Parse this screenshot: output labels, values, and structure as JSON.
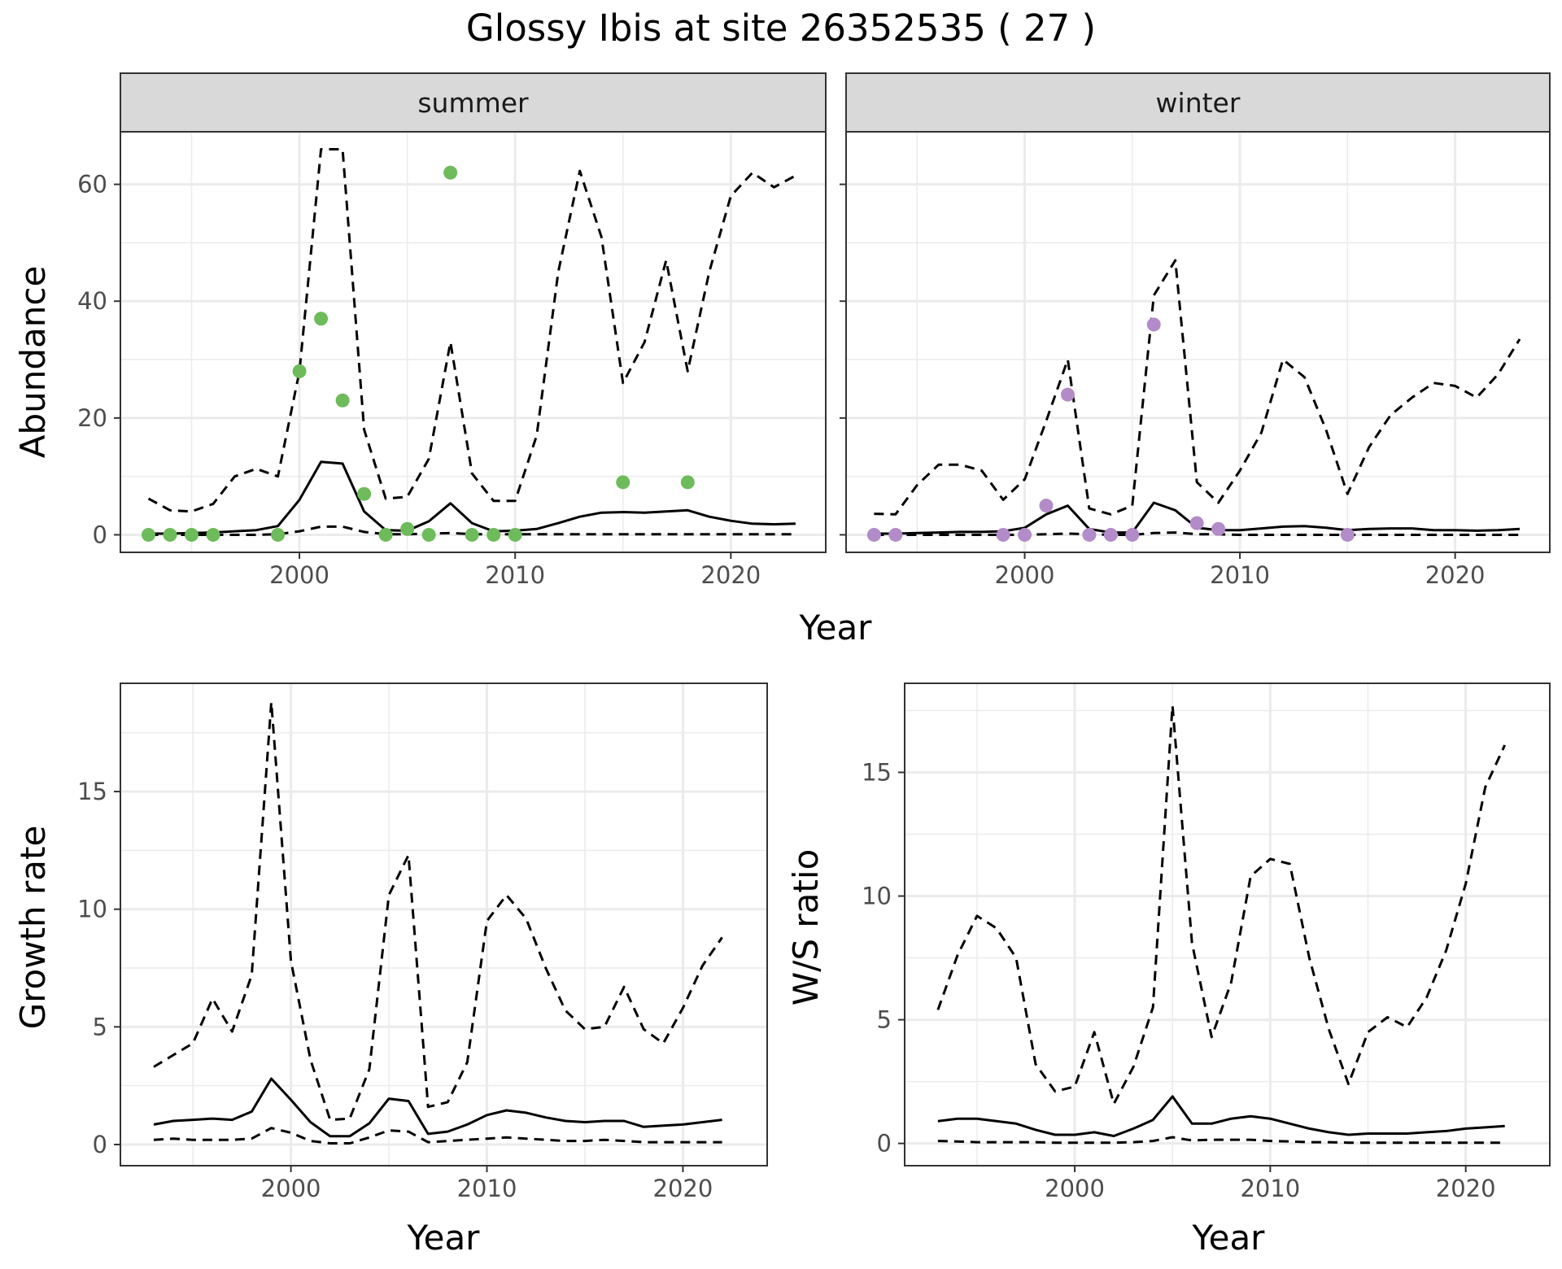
{
  "title": "Glossy Ibis at site 26352535 ( 27 )",
  "colors": {
    "summer_points": "#6dbb5a",
    "winter_points": "#b38bc8",
    "lines": "#000000",
    "strip_fill": "#d9d9d9",
    "grid": "#ebebeb",
    "panel_border": "#333333"
  },
  "legend": "none",
  "chart_data": [
    {
      "id": "abundance-summer",
      "type": "line",
      "strip": "summer",
      "xlabel": "",
      "ylabel": "Abundance",
      "xlim": [
        1991.7,
        2024.4
      ],
      "ylim": [
        -3,
        69
      ],
      "xticks": [
        2000,
        2010,
        2020
      ],
      "yticks": [
        0,
        20,
        40,
        60
      ],
      "grid": true,
      "x": [
        1993,
        1994,
        1995,
        1996,
        1997,
        1998,
        1999,
        2000,
        2001,
        2002,
        2003,
        2004,
        2005,
        2006,
        2007,
        2008,
        2009,
        2010,
        2011,
        2012,
        2013,
        2014,
        2015,
        2016,
        2017,
        2018,
        2019,
        2020,
        2021,
        2022,
        2023
      ],
      "series": [
        {
          "role": "lower",
          "style": "dashed",
          "values": [
            0,
            0,
            0,
            0,
            0,
            0,
            0.1,
            0.6,
            1.4,
            1.4,
            0.5,
            0.1,
            0.1,
            0.2,
            0.3,
            0.1,
            0.1,
            0.1,
            0.1,
            0.1,
            0.1,
            0.1,
            0.1,
            0.1,
            0.1,
            0.1,
            0.1,
            0.1,
            0.1,
            0.1,
            0.1
          ]
        },
        {
          "role": "mean",
          "style": "solid",
          "values": [
            0.2,
            0.2,
            0.3,
            0.4,
            0.6,
            0.8,
            1.5,
            6,
            12.5,
            12.2,
            4,
            0.8,
            0.7,
            2.3,
            5.4,
            2,
            0.6,
            0.7,
            1,
            2,
            3.1,
            3.8,
            3.9,
            3.8,
            4,
            4.2,
            3.1,
            2.4,
            1.9,
            1.8,
            1.9
          ]
        },
        {
          "role": "upper",
          "style": "dashed",
          "values": [
            6.2,
            4.2,
            4,
            5.3,
            10,
            11.3,
            10,
            28,
            66,
            66,
            18,
            6.2,
            6.5,
            13,
            33,
            10.5,
            5.8,
            5.8,
            17,
            45,
            62.3,
            51,
            26,
            33,
            47,
            28,
            45,
            58,
            62,
            59.5,
            61.5
          ]
        }
      ],
      "points": {
        "x": [
          1993,
          1994,
          1995,
          1996,
          1999,
          2000,
          2001,
          2002,
          2003,
          2004,
          2005,
          2006,
          2007,
          2008,
          2009,
          2010,
          2015,
          2018
        ],
        "y": [
          0,
          0,
          0,
          0,
          0,
          28,
          37,
          23,
          7,
          0,
          1,
          0,
          62,
          0,
          0,
          0,
          9,
          9
        ]
      }
    },
    {
      "id": "abundance-winter",
      "type": "line",
      "strip": "winter",
      "xlabel": "",
      "ylabel": "",
      "xlim": [
        1991.7,
        2024.4
      ],
      "ylim": [
        -3,
        69
      ],
      "xticks": [
        2000,
        2010,
        2020
      ],
      "yticks": [
        0,
        20,
        40,
        60
      ],
      "grid": true,
      "x": [
        1993,
        1994,
        1995,
        1996,
        1997,
        1998,
        1999,
        2000,
        2001,
        2002,
        2003,
        2004,
        2005,
        2006,
        2007,
        2008,
        2009,
        2010,
        2011,
        2012,
        2013,
        2014,
        2015,
        2016,
        2017,
        2018,
        2019,
        2020,
        2021,
        2022,
        2023
      ],
      "series": [
        {
          "role": "lower",
          "style": "dashed",
          "values": [
            0,
            0,
            0,
            0,
            0,
            0,
            0,
            0,
            0.1,
            0.2,
            0.1,
            0,
            0,
            0.3,
            0.4,
            0.1,
            0.1,
            0,
            0,
            0,
            0,
            0,
            0,
            0,
            0,
            0,
            0,
            0,
            0,
            0,
            0
          ]
        },
        {
          "role": "mean",
          "style": "solid",
          "values": [
            0.2,
            0.2,
            0.3,
            0.4,
            0.5,
            0.5,
            0.6,
            1.2,
            3.5,
            5,
            1,
            0.4,
            0.4,
            5.5,
            4.2,
            1.2,
            0.8,
            0.8,
            1.1,
            1.4,
            1.5,
            1.2,
            0.8,
            1,
            1.1,
            1.1,
            0.8,
            0.8,
            0.7,
            0.8,
            1
          ]
        },
        {
          "role": "upper",
          "style": "dashed",
          "values": [
            3.6,
            3.5,
            8.5,
            12,
            12,
            11,
            6,
            9.5,
            19.5,
            30,
            4.5,
            3.5,
            5,
            41,
            47,
            9,
            5.5,
            11,
            17.5,
            30,
            27,
            18,
            7,
            15,
            20.5,
            23.5,
            26,
            25.5,
            23.5,
            27.5,
            33.5
          ]
        }
      ],
      "points": {
        "x": [
          1993,
          1994,
          1999,
          2000,
          2001,
          2002,
          2003,
          2004,
          2005,
          2006,
          2008,
          2009,
          2015
        ],
        "y": [
          0,
          0,
          0,
          0,
          5,
          24,
          0,
          0,
          0,
          36,
          2,
          1,
          0
        ]
      }
    },
    {
      "id": "growth-rate",
      "type": "line",
      "xlabel": "Year",
      "ylabel": "Growth rate",
      "xlim": [
        1991.3,
        2024.3
      ],
      "ylim": [
        -0.9,
        19.6
      ],
      "xticks": [
        2000,
        2010,
        2020
      ],
      "yticks": [
        0,
        5,
        10,
        15
      ],
      "grid": true,
      "x": [
        1993,
        1994,
        1995,
        1996,
        1997,
        1998,
        1999,
        2000,
        2001,
        2002,
        2003,
        2004,
        2005,
        2006,
        2007,
        2008,
        2009,
        2010,
        2011,
        2012,
        2013,
        2014,
        2015,
        2016,
        2017,
        2018,
        2019,
        2020,
        2021,
        2022
      ],
      "series": [
        {
          "role": "lower",
          "style": "dashed",
          "values": [
            0.2,
            0.25,
            0.2,
            0.2,
            0.2,
            0.25,
            0.7,
            0.5,
            0.15,
            0.05,
            0.05,
            0.3,
            0.6,
            0.55,
            0.1,
            0.15,
            0.2,
            0.25,
            0.3,
            0.25,
            0.2,
            0.15,
            0.15,
            0.2,
            0.15,
            0.1,
            0.1,
            0.1,
            0.1,
            0.1
          ]
        },
        {
          "role": "mean",
          "style": "solid",
          "values": [
            0.85,
            1,
            1.05,
            1.1,
            1.05,
            1.4,
            2.8,
            1.9,
            0.95,
            0.35,
            0.35,
            0.9,
            1.95,
            1.85,
            0.45,
            0.55,
            0.85,
            1.25,
            1.45,
            1.35,
            1.15,
            1,
            0.95,
            1,
            1,
            0.75,
            0.8,
            0.85,
            0.95,
            1.05
          ]
        },
        {
          "role": "upper",
          "style": "dashed",
          "values": [
            3.3,
            3.8,
            4.3,
            6.2,
            4.8,
            7.2,
            18.8,
            7.8,
            3.6,
            1.05,
            1.1,
            3.2,
            10.6,
            12.3,
            1.6,
            1.8,
            3.5,
            9.5,
            10.6,
            9.6,
            7.5,
            5.7,
            4.9,
            5,
            6.7,
            4.9,
            4.3,
            5.8,
            7.6,
            8.8
          ]
        }
      ]
    },
    {
      "id": "ws-ratio",
      "type": "line",
      "xlabel": "Year",
      "ylabel": "W/S ratio",
      "xlim": [
        1991.3,
        2024.3
      ],
      "ylim": [
        -0.9,
        18.6
      ],
      "xticks": [
        2000,
        2010,
        2020
      ],
      "yticks": [
        0,
        5,
        10,
        15
      ],
      "grid": true,
      "x": [
        1993,
        1994,
        1995,
        1996,
        1997,
        1998,
        1999,
        2000,
        2001,
        2002,
        2003,
        2004,
        2005,
        2006,
        2007,
        2008,
        2009,
        2010,
        2011,
        2012,
        2013,
        2014,
        2015,
        2016,
        2017,
        2018,
        2019,
        2020,
        2021,
        2022
      ],
      "series": [
        {
          "role": "lower",
          "style": "dashed",
          "values": [
            0.1,
            0.08,
            0.05,
            0.05,
            0.05,
            0.05,
            0.03,
            0.03,
            0.03,
            0.03,
            0.05,
            0.1,
            0.25,
            0.12,
            0.15,
            0.15,
            0.15,
            0.1,
            0.08,
            0.05,
            0.05,
            0.03,
            0.03,
            0.03,
            0.03,
            0.03,
            0.03,
            0.03,
            0.03,
            0.03
          ]
        },
        {
          "role": "mean",
          "style": "solid",
          "values": [
            0.9,
            1,
            1,
            0.9,
            0.8,
            0.55,
            0.35,
            0.35,
            0.45,
            0.3,
            0.6,
            0.95,
            1.9,
            0.8,
            0.8,
            1,
            1.1,
            1,
            0.8,
            0.6,
            0.45,
            0.35,
            0.4,
            0.4,
            0.4,
            0.45,
            0.5,
            0.6,
            0.65,
            0.7
          ]
        },
        {
          "role": "upper",
          "style": "dashed",
          "values": [
            5.4,
            7.6,
            9.2,
            8.7,
            7.5,
            3.2,
            2.1,
            2.3,
            4.5,
            1.6,
            3.1,
            5.5,
            17.7,
            8.1,
            4.3,
            6.5,
            10.8,
            11.5,
            11.3,
            7.5,
            4.6,
            2.4,
            4.5,
            5.1,
            4.7,
            5.9,
            7.8,
            10.5,
            14.4,
            16.1
          ]
        }
      ]
    }
  ]
}
